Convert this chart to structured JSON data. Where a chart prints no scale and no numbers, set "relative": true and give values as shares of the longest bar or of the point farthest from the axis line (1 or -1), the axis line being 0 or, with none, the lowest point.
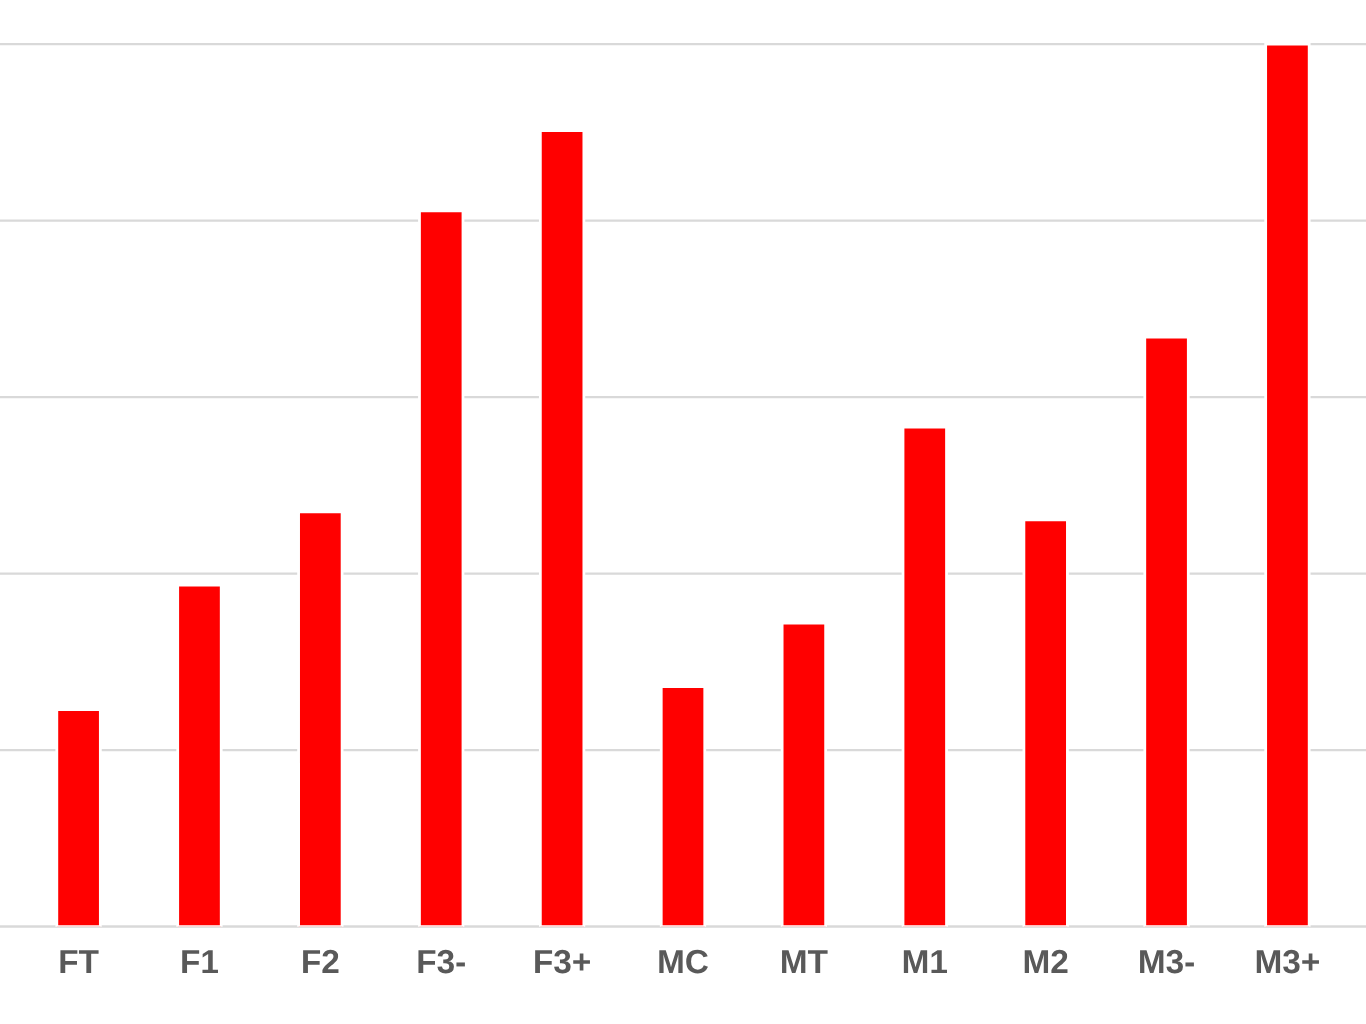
{
  "chart_data": {
    "type": "bar",
    "relative": true,
    "grid": "y",
    "categories": [
      "FT",
      "F1",
      "F2",
      "F3-",
      "F3+",
      "MC",
      "MT",
      "M1",
      "M2",
      "M3-",
      "M3+"
    ],
    "values": [
      0.246,
      0.387,
      0.47,
      0.811,
      0.902,
      0.272,
      0.344,
      0.566,
      0.461,
      0.668,
      1
    ],
    "color": "#ff0000"
  }
}
